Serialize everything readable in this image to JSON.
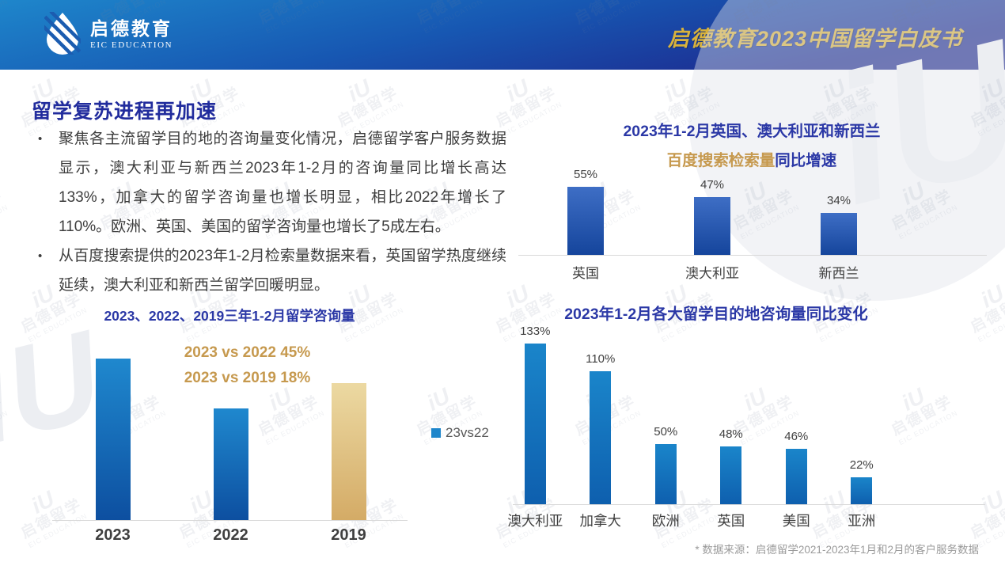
{
  "header": {
    "logo_cn": "启德教育",
    "logo_en": "EIC EDUCATION",
    "title": "启德教育2023中国留学白皮书"
  },
  "watermark": {
    "glyph": "iU",
    "cn": "启德留学",
    "en": "EIC EDUCATION"
  },
  "main": {
    "heading": "留学复苏进程再加速",
    "bullets": [
      "聚焦各主流留学目的地的咨询量变化情况，启德留学客户服务数据显示，澳大利亚与新西兰2023年1-2月的咨询量同比增长高达133%，加拿大的留学咨询量也增长明显，相比2022年增长了110%。欧洲、英国、美国的留学咨询量也增长了5成左右。",
      "从百度搜索提供的2023年1-2月检索量数据来看，英国留学热度继续延续，澳大利亚和新西兰留学回暖明显。"
    ],
    "footnote": "* 数据来源：启德留学2021-2023年1月和2月的客户服务数据"
  },
  "colors": {
    "heading_blue": "#212c9d",
    "chart_title_blue": "#2b38a6",
    "gold_text": "#c6994e",
    "header_gold": "#d8b23c",
    "bar_blue": "#1a85ca",
    "bar_gold": "#d4ab66",
    "axis_gray": "#d9d9d9"
  },
  "chart_data": [
    {
      "type": "bar",
      "title": "2023、2022、2019三年1-2月留学咨询量",
      "annotations": [
        "2023 vs 2022  45%",
        "2023 vs 2019  18%"
      ],
      "legend": "23vs22",
      "legend_position": "right",
      "categories": [
        "2023",
        "2022",
        "2019"
      ],
      "values": [
        100,
        69,
        85
      ],
      "note": "bars unlabeled; relative index estimated from bar heights (2023=100), consistent with +45% vs 2022 and +18% vs 2019",
      "labels": null,
      "colors": [
        "blue1",
        "blue1",
        "gold"
      ],
      "grid": false
    },
    {
      "type": "bar",
      "title_line1": "2023年1-2月英国、澳大利亚和新西兰",
      "title_line2_gold": "百度搜索检索量",
      "title_line2_blue": "同比增速",
      "categories": [
        "英国",
        "澳大利亚",
        "新西兰"
      ],
      "values": [
        55,
        47,
        34
      ],
      "labels": [
        "55%",
        "47%",
        "34%"
      ],
      "colors": [
        "blue2",
        "blue2",
        "blue2"
      ],
      "grid": false
    },
    {
      "type": "bar",
      "title": "2023年1-2月各大留学目的地咨询量同比变化",
      "categories": [
        "澳大利亚",
        "加拿大",
        "欧洲",
        "英国",
        "美国",
        "亚洲"
      ],
      "values": [
        133,
        110,
        50,
        48,
        46,
        22
      ],
      "labels": [
        "133%",
        "110%",
        "50%",
        "48%",
        "46%",
        "22%"
      ],
      "colors": [
        "blue3",
        "blue3",
        "blue3",
        "blue3",
        "blue3",
        "blue3"
      ],
      "grid": false
    }
  ]
}
